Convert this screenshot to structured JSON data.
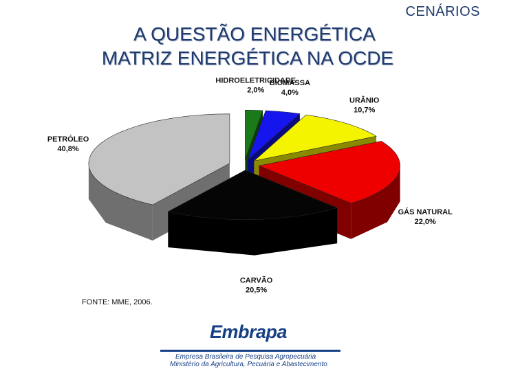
{
  "header": {
    "section": "CENÁRIOS",
    "title_line1": "A QUESTÃO ENERGÉTICA",
    "title_line2": "MATRIZ ENERGÉTICA NA OCDE"
  },
  "chart_data": {
    "type": "pie",
    "title": "",
    "style": "3d-exploded",
    "slices": [
      {
        "label": "HIDROELETRICIDADE",
        "value_label": "2,0%",
        "value": 2.0,
        "color": "#1a7a1a",
        "side": "#0b3d0b"
      },
      {
        "label": "BIOMASSA",
        "value_label": "4,0%",
        "value": 4.0,
        "color": "#1515ee",
        "side": "#0a0a80"
      },
      {
        "label": "URÂNIO",
        "value_label": "10,7%",
        "value": 10.7,
        "color": "#f4f400",
        "side": "#8a8a00"
      },
      {
        "label": "GÁS NATURAL",
        "value_label": "22,0%",
        "value": 22.0,
        "color": "#ee0000",
        "side": "#800000"
      },
      {
        "label": "CARVÃO",
        "value_label": "20,5%",
        "value": 20.5,
        "color": "#050505",
        "side": "#000000"
      },
      {
        "label": "PETRÓLEO",
        "value_label": "40,8%",
        "value": 40.8,
        "color": "#c3c3c3",
        "side": "#6f6f6f"
      }
    ]
  },
  "footer": {
    "source": "FONTE: MME, 2006.",
    "logo_name": "Embrapa",
    "logo_line1": "Empresa Brasileira de Pesquisa Agropecuária",
    "logo_line2": "Ministério da Agricultura, Pecuária e Abastecimento"
  }
}
